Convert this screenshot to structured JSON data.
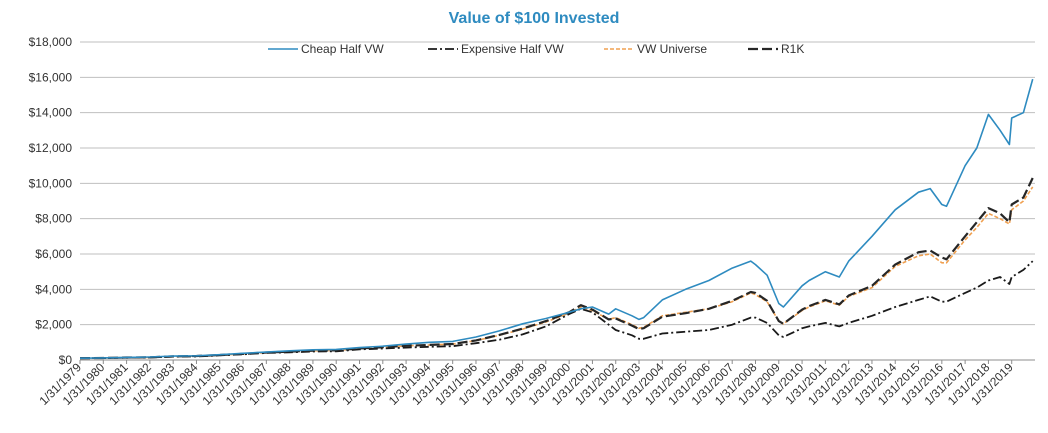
{
  "chart_data": {
    "type": "line",
    "title": "Value of $100 Invested",
    "xlabel": "",
    "ylabel": "",
    "ylim": [
      0,
      18000
    ],
    "y_ticks": [
      "$0",
      "$2,000",
      "$4,000",
      "$6,000",
      "$8,000",
      "$10,000",
      "$12,000",
      "$14,000",
      "$16,000",
      "$18,000"
    ],
    "y_tick_values": [
      0,
      2000,
      4000,
      6000,
      8000,
      10000,
      12000,
      14000,
      16000,
      18000
    ],
    "x_ticks": [
      "1/31/1979",
      "1/31/1980",
      "1/31/1981",
      "1/31/1982",
      "1/31/1983",
      "1/31/1984",
      "1/31/1985",
      "1/31/1986",
      "1/31/1987",
      "1/31/1988",
      "1/31/1989",
      "1/31/1990",
      "1/31/1991",
      "1/31/1992",
      "1/31/1993",
      "1/31/1994",
      "1/31/1995",
      "1/31/1996",
      "1/31/1997",
      "1/31/1998",
      "1/31/1999",
      "1/31/2000",
      "1/31/2001",
      "1/31/2002",
      "1/31/2003",
      "1/31/2004",
      "1/31/2005",
      "1/31/2006",
      "1/31/2007",
      "1/31/2008",
      "1/31/2009",
      "1/31/2010",
      "1/31/2011",
      "1/31/2012",
      "1/31/2013",
      "1/31/2014",
      "1/31/2015",
      "1/31/2016",
      "1/31/2017",
      "1/31/2018",
      "1/31/2019"
    ],
    "x": [
      1979,
      1980,
      1981,
      1982,
      1983,
      1984,
      1985,
      1986,
      1987,
      1988,
      1989,
      1990,
      1991,
      1992,
      1993,
      1994,
      1995,
      1996,
      1997,
      1998,
      1999,
      2000,
      2000.5,
      2001,
      2001.7,
      2002,
      2002.7,
      2003,
      2003.2,
      2004,
      2005,
      2006,
      2007,
      2007.8,
      2008,
      2008.5,
      2009,
      2009.2,
      2010,
      2010.3,
      2011,
      2011.6,
      2012,
      2013,
      2014,
      2015,
      2015.5,
      2016,
      2016.2,
      2017,
      2017.5,
      2018,
      2018.5,
      2018.9,
      2019,
      2019.5,
      2019.9
    ],
    "series": [
      {
        "name": "Cheap Half VW",
        "color": "#2e8bc0",
        "dash": "solid",
        "values": [
          100,
          120,
          150,
          170,
          220,
          240,
          300,
          380,
          450,
          520,
          580,
          600,
          700,
          780,
          900,
          1000,
          1050,
          1300,
          1650,
          2050,
          2350,
          2700,
          2900,
          3000,
          2600,
          2900,
          2500,
          2300,
          2400,
          3400,
          4000,
          4500,
          5200,
          5600,
          5400,
          4800,
          3200,
          3000,
          4200,
          4500,
          5000,
          4700,
          5600,
          7000,
          8500,
          9500,
          9700,
          8800,
          8700,
          11000,
          12000,
          13900,
          13000,
          12200,
          13700,
          14000,
          15900
        ]
      },
      {
        "name": "Expensive Half VW",
        "color": "#1a1a1a",
        "dash": "dashdot",
        "values": [
          100,
          110,
          130,
          140,
          190,
          200,
          260,
          320,
          400,
          430,
          480,
          490,
          600,
          650,
          700,
          750,
          780,
          950,
          1150,
          1450,
          1900,
          2600,
          2900,
          2700,
          2000,
          1700,
          1400,
          1200,
          1200,
          1500,
          1600,
          1700,
          2000,
          2400,
          2400,
          2100,
          1400,
          1300,
          1800,
          1900,
          2100,
          1900,
          2100,
          2500,
          3000,
          3400,
          3600,
          3300,
          3300,
          3800,
          4100,
          4500,
          4700,
          4300,
          4700,
          5100,
          5600
        ]
      },
      {
        "name": "VW Universe",
        "color": "#f0a050",
        "dash": "dotted",
        "values": [
          100,
          115,
          140,
          150,
          200,
          220,
          280,
          340,
          420,
          470,
          520,
          540,
          650,
          720,
          800,
          850,
          900,
          1100,
          1400,
          1750,
          2150,
          2650,
          3000,
          2800,
          2300,
          2400,
          2000,
          1800,
          1850,
          2500,
          2700,
          2900,
          3300,
          3800,
          3700,
          3300,
          2200,
          2050,
          2800,
          3000,
          3350,
          3100,
          3600,
          4100,
          5300,
          5900,
          6000,
          5500,
          5500,
          6800,
          7500,
          8300,
          8000,
          7700,
          8500,
          9000,
          9800
        ]
      },
      {
        "name": "R1K",
        "color": "#262626",
        "dash": "longdash",
        "values": [
          100,
          116,
          142,
          152,
          205,
          225,
          285,
          345,
          425,
          475,
          525,
          545,
          655,
          725,
          805,
          855,
          905,
          1110,
          1420,
          1780,
          2200,
          2700,
          3100,
          2850,
          2300,
          2350,
          1950,
          1750,
          1800,
          2450,
          2650,
          2900,
          3350,
          3850,
          3800,
          3350,
          2200,
          2050,
          2850,
          3050,
          3400,
          3150,
          3650,
          4200,
          5400,
          6100,
          6200,
          5800,
          5700,
          7000,
          7800,
          8600,
          8300,
          7800,
          8800,
          9200,
          10300
        ]
      }
    ],
    "legend_position": "top",
    "grid": true
  }
}
